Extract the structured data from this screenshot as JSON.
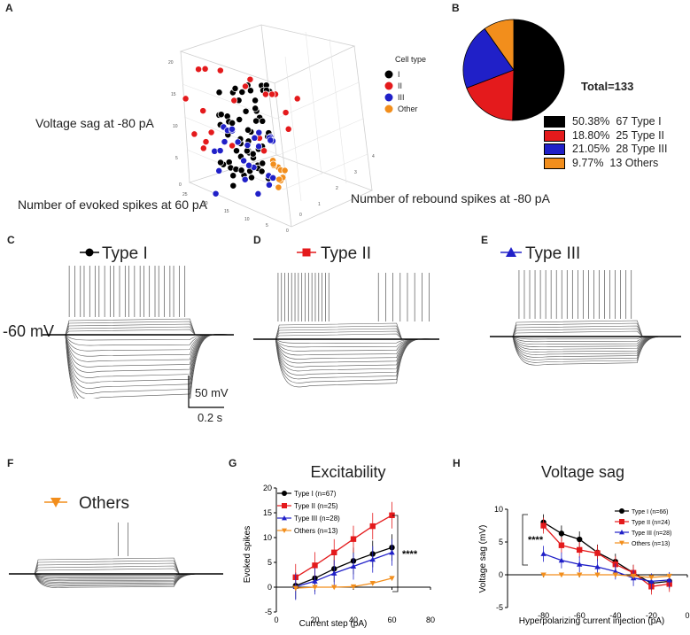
{
  "panel_labels": {
    "a": "A",
    "b": "B",
    "c": "C",
    "d": "D",
    "e": "E",
    "f": "F",
    "g": "G",
    "h": "H"
  },
  "colors": {
    "type1": "#000000",
    "type2": "#e41a1c",
    "type3": "#2020c8",
    "other": "#f28e1c"
  },
  "panel_a": {
    "legend_title": "Cell type",
    "legend": [
      "I",
      "II",
      "III",
      "Other"
    ],
    "axis_z": "Voltage sag at -80 pA",
    "axis_x": "Number of evoked spikes at 60 pA",
    "axis_y": "Number of rebound spikes at -80 pA",
    "z_ticks": [
      "20",
      "15",
      "10",
      "5",
      "0"
    ],
    "x_ticks": [
      "25",
      "20",
      "15",
      "10",
      "5",
      "0"
    ],
    "y_ticks": [
      "0",
      "1",
      "2",
      "3",
      "4"
    ]
  },
  "panel_b": {
    "total": "Total=133",
    "legend": [
      {
        "pct": "50.38%",
        "label": "67 Type I"
      },
      {
        "pct": "18.80%",
        "label": "25 Type II"
      },
      {
        "pct": "21.05%",
        "label": "28 Type III"
      },
      {
        "pct": "9.77%",
        "label": "13 Others"
      }
    ]
  },
  "traces": {
    "type1": "Type I",
    "type2": "Type II",
    "type3": "Type III",
    "others": "Others",
    "vm": "-60 mV",
    "scale_v": "50 mV",
    "scale_t": "0.2 s"
  },
  "chart_data": [
    {
      "type": "pie",
      "title": "Total=133",
      "categories": [
        "Type I",
        "Type II",
        "Type III",
        "Others"
      ],
      "values": [
        67,
        25,
        28,
        13
      ],
      "percent": [
        50.38,
        18.8,
        21.05,
        9.77
      ]
    },
    {
      "type": "line",
      "title": "Excitability",
      "xlabel": "Current step (pA)",
      "ylabel": "Evoked spikes",
      "x": [
        10,
        20,
        30,
        40,
        50,
        60
      ],
      "xlim": [
        0,
        80
      ],
      "ylim": [
        -5,
        20
      ],
      "xticks": [
        "0",
        "20",
        "40",
        "60",
        "80"
      ],
      "yticks": [
        "-5",
        "0",
        "5",
        "10",
        "15",
        "20"
      ],
      "series": [
        {
          "name": "Type I (n=67)",
          "values": [
            0.3,
            1.8,
            3.7,
            5.3,
            6.7,
            8.0
          ]
        },
        {
          "name": "Type II (n=25)",
          "values": [
            2.0,
            4.4,
            7.0,
            9.7,
            12.3,
            14.5
          ]
        },
        {
          "name": "Type III (n=28)",
          "values": [
            0.1,
            1.2,
            2.8,
            4.2,
            5.6,
            7.0
          ]
        },
        {
          "name": "Others (n=13)",
          "values": [
            -0.2,
            0.0,
            0.0,
            0.1,
            0.8,
            1.8
          ]
        }
      ],
      "annotation": "****"
    },
    {
      "type": "line",
      "title": "Voltage sag",
      "xlabel": "Hyperpolarizing current injection (pA)",
      "ylabel": "Voltage sag (mV)",
      "x": [
        -80,
        -70,
        -60,
        -50,
        -40,
        -30,
        -20,
        -10
      ],
      "xlim": [
        -100,
        0
      ],
      "ylim": [
        -5,
        10
      ],
      "xticks": [
        "-80",
        "-60",
        "-40",
        "-20",
        "0"
      ],
      "yticks": [
        "-5",
        "0",
        "5",
        "10"
      ],
      "series": [
        {
          "name": "Type I (n=66)",
          "values": [
            8.0,
            6.3,
            5.4,
            3.4,
            2.0,
            0.3,
            -1.3,
            -1.0
          ]
        },
        {
          "name": "Type II (n=24)",
          "values": [
            7.5,
            4.5,
            3.8,
            3.3,
            1.6,
            0.3,
            -1.8,
            -1.4
          ]
        },
        {
          "name": "Type III (n=28)",
          "values": [
            3.2,
            2.2,
            1.6,
            1.2,
            0.5,
            -0.5,
            -1.0,
            -0.8
          ]
        },
        {
          "name": "Others (n=13)",
          "values": [
            0.0,
            0.0,
            0.0,
            0.0,
            0.0,
            -0.2,
            -0.4,
            -0.2
          ]
        }
      ],
      "annotation": "****"
    }
  ]
}
